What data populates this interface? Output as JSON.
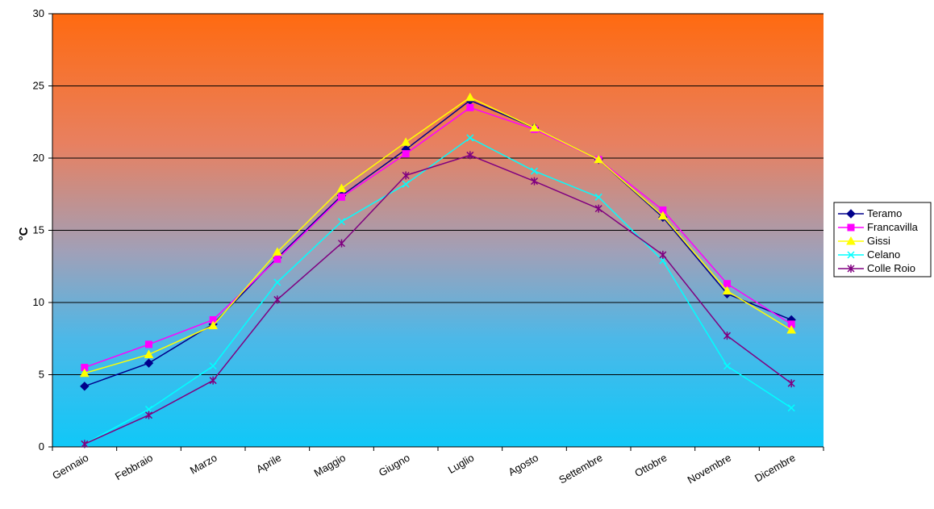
{
  "chart_data": {
    "type": "line",
    "ylabel": "°C",
    "ylim": [
      0,
      30
    ],
    "yticks": [
      0,
      5,
      10,
      15,
      20,
      25,
      30
    ],
    "grid": "horizontal",
    "legend_position": "right",
    "background": "gradient orange (top) to cyan (bottom)",
    "categories": [
      "Gennaio",
      "Febbraio",
      "Marzo",
      "Aprile",
      "Maggio",
      "Giugno",
      "Luglio",
      "Agosto",
      "Settembre",
      "Ottobre",
      "Novembre",
      "Dicembre"
    ],
    "series": [
      {
        "name": "Teramo",
        "color": "#00008B",
        "marker": "diamond",
        "values": [
          4.2,
          5.8,
          8.5,
          13.1,
          17.4,
          20.6,
          24.0,
          22.1,
          19.9,
          15.9,
          10.6,
          8.8
        ]
      },
      {
        "name": "Francavilla",
        "color": "#FF00FF",
        "marker": "square",
        "values": [
          5.5,
          7.1,
          8.8,
          13.0,
          17.3,
          20.3,
          23.5,
          22.0,
          19.9,
          16.4,
          11.3,
          8.5
        ]
      },
      {
        "name": "Gissi",
        "color": "#FFFF00",
        "marker": "triangle",
        "values": [
          5.1,
          6.4,
          8.4,
          13.5,
          17.9,
          21.1,
          24.2,
          22.1,
          19.9,
          16.0,
          10.8,
          8.1
        ]
      },
      {
        "name": "Celano",
        "color": "#00FFFF",
        "marker": "x",
        "values": [
          0.2,
          2.6,
          5.6,
          11.4,
          15.6,
          18.2,
          21.4,
          19.1,
          17.3,
          12.9,
          5.6,
          2.7
        ]
      },
      {
        "name": "Colle Roio",
        "color": "#800080",
        "marker": "star",
        "values": [
          0.2,
          2.2,
          4.6,
          10.2,
          14.1,
          18.8,
          20.2,
          18.4,
          16.5,
          13.3,
          7.7,
          4.4
        ]
      }
    ]
  }
}
